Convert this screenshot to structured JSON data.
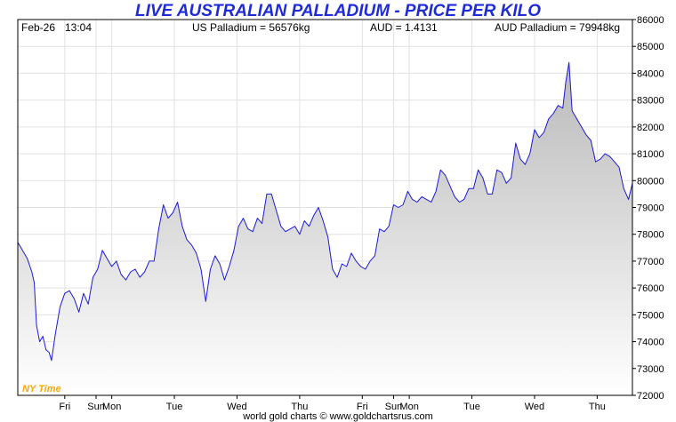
{
  "header": {
    "title": "LIVE AUSTRALIAN PALLADIUM - PRICE PER KILO",
    "date": "Feb-26",
    "time": "13:04",
    "us_palladium": "US Palladium = 56576kg",
    "aud_rate": "AUD = 1.4131",
    "aud_palladium": "AUD Palladium = 79948kg"
  },
  "footer": {
    "timezone": "NY Time",
    "credit": "world gold charts © www.goldchartsrus.com"
  },
  "colors": {
    "line": "#1a1ad8",
    "fill_top": "#b9b9b9",
    "fill_bottom": "#ffffff",
    "title": "#1f2bd6",
    "timezone": "#ffa500"
  },
  "chart_data": {
    "type": "area",
    "title": "LIVE AUSTRALIAN PALLADIUM - PRICE PER KILO",
    "xlabel": "",
    "ylabel": "",
    "ylim": [
      72000,
      86000
    ],
    "y_ticks": [
      "72000",
      "73000",
      "74000",
      "75000",
      "76000",
      "77000",
      "78000",
      "79000",
      "80000",
      "81000",
      "82000",
      "83000",
      "84000",
      "85000",
      "86000"
    ],
    "x_ticks": [
      {
        "label": "Fri",
        "x": 3
      },
      {
        "label": "Sun",
        "x": 5
      },
      {
        "label": "Mon",
        "x": 6
      },
      {
        "label": "Tue",
        "x": 10
      },
      {
        "label": "Wed",
        "x": 14
      },
      {
        "label": "Thu",
        "x": 18
      },
      {
        "label": "Fri",
        "x": 22
      },
      {
        "label": "Sun",
        "x": 24
      },
      {
        "label": "Mon",
        "x": 25
      },
      {
        "label": "Tue",
        "x": 29
      },
      {
        "label": "Wed",
        "x": 33
      },
      {
        "label": "Thu",
        "x": 37
      }
    ],
    "x_range": [
      0,
      39.25
    ],
    "grid": true,
    "series": [
      {
        "values": [
          [
            0.0,
            77700
          ],
          [
            0.3,
            77400
          ],
          [
            0.6,
            77100
          ],
          [
            0.9,
            76600
          ],
          [
            1.05,
            76200
          ],
          [
            1.2,
            74600
          ],
          [
            1.4,
            74000
          ],
          [
            1.6,
            74200
          ],
          [
            1.8,
            73700
          ],
          [
            2.0,
            73600
          ],
          [
            2.15,
            73300
          ],
          [
            2.4,
            74300
          ],
          [
            2.7,
            75300
          ],
          [
            3.0,
            75800
          ],
          [
            3.3,
            75900
          ],
          [
            3.6,
            75600
          ],
          [
            3.9,
            75100
          ],
          [
            4.2,
            75800
          ],
          [
            4.5,
            75400
          ],
          [
            4.8,
            76400
          ],
          [
            5.1,
            76700
          ],
          [
            5.4,
            77400
          ],
          [
            5.7,
            77100
          ],
          [
            6.0,
            76800
          ],
          [
            6.3,
            77000
          ],
          [
            6.6,
            76500
          ],
          [
            6.9,
            76300
          ],
          [
            7.2,
            76600
          ],
          [
            7.5,
            76700
          ],
          [
            7.8,
            76400
          ],
          [
            8.1,
            76600
          ],
          [
            8.4,
            77000
          ],
          [
            8.7,
            77000
          ],
          [
            9.0,
            78200
          ],
          [
            9.3,
            79100
          ],
          [
            9.6,
            78600
          ],
          [
            9.9,
            78800
          ],
          [
            10.2,
            79200
          ],
          [
            10.5,
            78300
          ],
          [
            10.8,
            77800
          ],
          [
            11.1,
            77600
          ],
          [
            11.4,
            77300
          ],
          [
            11.7,
            76700
          ],
          [
            12.0,
            75500
          ],
          [
            12.3,
            76700
          ],
          [
            12.6,
            77200
          ],
          [
            12.9,
            76900
          ],
          [
            13.2,
            76300
          ],
          [
            13.5,
            76800
          ],
          [
            13.8,
            77400
          ],
          [
            14.1,
            78300
          ],
          [
            14.4,
            78600
          ],
          [
            14.7,
            78200
          ],
          [
            15.0,
            78100
          ],
          [
            15.3,
            78600
          ],
          [
            15.6,
            78400
          ],
          [
            15.9,
            79500
          ],
          [
            16.2,
            79500
          ],
          [
            16.5,
            78900
          ],
          [
            16.8,
            78300
          ],
          [
            17.1,
            78100
          ],
          [
            17.4,
            78200
          ],
          [
            17.7,
            78300
          ],
          [
            18.0,
            78000
          ],
          [
            18.3,
            78500
          ],
          [
            18.6,
            78300
          ],
          [
            18.9,
            78700
          ],
          [
            19.2,
            79000
          ],
          [
            19.5,
            78500
          ],
          [
            19.8,
            77900
          ],
          [
            20.1,
            76700
          ],
          [
            20.4,
            76400
          ],
          [
            20.7,
            76900
          ],
          [
            21.0,
            76800
          ],
          [
            21.3,
            77300
          ],
          [
            21.6,
            77000
          ],
          [
            21.9,
            76800
          ],
          [
            22.2,
            76700
          ],
          [
            22.5,
            77000
          ],
          [
            22.8,
            77200
          ],
          [
            23.1,
            78200
          ],
          [
            23.4,
            78100
          ],
          [
            23.7,
            78300
          ],
          [
            24.0,
            79100
          ],
          [
            24.3,
            79000
          ],
          [
            24.6,
            79100
          ],
          [
            24.9,
            79600
          ],
          [
            25.2,
            79300
          ],
          [
            25.5,
            79200
          ],
          [
            25.8,
            79400
          ],
          [
            26.1,
            79300
          ],
          [
            26.4,
            79200
          ],
          [
            26.7,
            79600
          ],
          [
            27.0,
            80400
          ],
          [
            27.3,
            80200
          ],
          [
            27.6,
            79800
          ],
          [
            27.9,
            79400
          ],
          [
            28.2,
            79200
          ],
          [
            28.5,
            79300
          ],
          [
            28.8,
            79700
          ],
          [
            29.1,
            79700
          ],
          [
            29.4,
            80400
          ],
          [
            29.7,
            80100
          ],
          [
            30.0,
            79500
          ],
          [
            30.3,
            79500
          ],
          [
            30.6,
            80400
          ],
          [
            30.9,
            80300
          ],
          [
            31.2,
            79900
          ],
          [
            31.5,
            80100
          ],
          [
            31.8,
            81400
          ],
          [
            32.1,
            80800
          ],
          [
            32.4,
            80600
          ],
          [
            32.7,
            81000
          ],
          [
            33.0,
            81900
          ],
          [
            33.3,
            81600
          ],
          [
            33.6,
            81800
          ],
          [
            33.9,
            82300
          ],
          [
            34.2,
            82500
          ],
          [
            34.5,
            82800
          ],
          [
            34.8,
            82700
          ],
          [
            35.0,
            83700
          ],
          [
            35.2,
            84400
          ],
          [
            35.4,
            82600
          ],
          [
            35.7,
            82300
          ],
          [
            36.0,
            82000
          ],
          [
            36.3,
            81700
          ],
          [
            36.6,
            81500
          ],
          [
            36.9,
            80700
          ],
          [
            37.2,
            80800
          ],
          [
            37.5,
            81000
          ],
          [
            37.8,
            80900
          ],
          [
            38.1,
            80700
          ],
          [
            38.4,
            80500
          ],
          [
            38.7,
            79700
          ],
          [
            39.0,
            79300
          ],
          [
            39.25,
            79900
          ]
        ]
      }
    ]
  }
}
